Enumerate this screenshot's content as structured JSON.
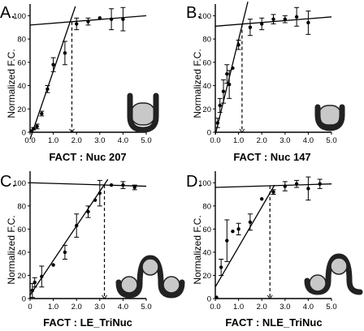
{
  "chart_data": [
    {
      "type": "scatter",
      "panel": "A.",
      "xlabel": "FACT :  Nuc 207",
      "ylabel": "Normalized F.C.",
      "xlim": [
        0,
        5
      ],
      "ylim": [
        0,
        110
      ],
      "x_ticks": [
        "0.0",
        "1.0",
        "2.0",
        "3.0",
        "4.0",
        "5.0"
      ],
      "y_ticks": [
        "0",
        "20",
        "40",
        "60",
        "80",
        "100"
      ],
      "x_tick_values": [
        0,
        1,
        2,
        3,
        4,
        5
      ],
      "y_tick_values": [
        0,
        20,
        40,
        60,
        80,
        100
      ],
      "points": [
        {
          "x": 0.05,
          "y": 1,
          "err": 0
        },
        {
          "x": 0.15,
          "y": 3,
          "err": 1
        },
        {
          "x": 0.3,
          "y": 5,
          "err": 2
        },
        {
          "x": 0.5,
          "y": 16,
          "err": 2
        },
        {
          "x": 0.75,
          "y": 37,
          "err": 3
        },
        {
          "x": 1.0,
          "y": 58,
          "err": 6
        },
        {
          "x": 1.5,
          "y": 68,
          "err": 10
        },
        {
          "x": 2.0,
          "y": 93,
          "err": 5
        },
        {
          "x": 2.5,
          "y": 95,
          "err": 3
        },
        {
          "x": 3.0,
          "y": 98,
          "err": 0
        },
        {
          "x": 3.5,
          "y": 97,
          "err": 9
        },
        {
          "x": 4.0,
          "y": 97,
          "err": 10
        }
      ],
      "fit_lines": [
        {
          "x": [
            0,
            1.95
          ],
          "y": [
            -6,
            108
          ]
        },
        {
          "x": [
            0,
            5
          ],
          "y": [
            92,
            100
          ]
        }
      ],
      "intersection_x": 1.8,
      "icon": "nuc207"
    },
    {
      "type": "scatter",
      "panel": "B.",
      "xlabel": "FACT :  Nuc 147",
      "ylabel": "Normalized F.C.",
      "xlim": [
        0,
        5
      ],
      "ylim": [
        0,
        110
      ],
      "x_ticks": [
        "0.0",
        "1.0",
        "2.0",
        "3.0",
        "4.0",
        "5.0"
      ],
      "y_ticks": [
        "0",
        "20",
        "40",
        "60",
        "80",
        "100"
      ],
      "x_tick_values": [
        0,
        1,
        2,
        3,
        4,
        5
      ],
      "y_tick_values": [
        0,
        20,
        40,
        60,
        80,
        100
      ],
      "points": [
        {
          "x": 0.1,
          "y": 8,
          "err": 4
        },
        {
          "x": 0.2,
          "y": 23,
          "err": 6
        },
        {
          "x": 0.35,
          "y": 35,
          "err": 10
        },
        {
          "x": 0.5,
          "y": 50,
          "err": 8
        },
        {
          "x": 0.6,
          "y": 41,
          "err": 12
        },
        {
          "x": 0.75,
          "y": 55,
          "err": 0
        },
        {
          "x": 1.0,
          "y": 75,
          "err": 4
        },
        {
          "x": 1.5,
          "y": 90,
          "err": 7
        },
        {
          "x": 2.0,
          "y": 93,
          "err": 5
        },
        {
          "x": 2.5,
          "y": 97,
          "err": 4
        },
        {
          "x": 3.0,
          "y": 97,
          "err": 3
        },
        {
          "x": 3.5,
          "y": 99,
          "err": 8
        },
        {
          "x": 4.0,
          "y": 94,
          "err": 10
        }
      ],
      "fit_lines": [
        {
          "x": [
            0,
            1.4
          ],
          "y": [
            -2,
            112
          ]
        },
        {
          "x": [
            0,
            5
          ],
          "y": [
            91,
            99
          ]
        }
      ],
      "intersection_x": 1.15,
      "icon": "nuc147"
    },
    {
      "type": "scatter",
      "panel": "C.",
      "xlabel": "FACT : LE_TriNuc",
      "ylabel": "Normalized F.C.",
      "xlim": [
        0,
        5
      ],
      "ylim": [
        0,
        110
      ],
      "x_ticks": [
        "0",
        "1.0",
        "2.0",
        "3.0",
        "4.0",
        "5.0"
      ],
      "y_ticks": [
        "0",
        "20",
        "40",
        "60",
        "80",
        "100"
      ],
      "x_tick_values": [
        0,
        1,
        2,
        3,
        4,
        5
      ],
      "y_tick_values": [
        0,
        20,
        40,
        60,
        80,
        100
      ],
      "points": [
        {
          "x": 0.1,
          "y": 7,
          "err": 6
        },
        {
          "x": 0.2,
          "y": 14,
          "err": 4
        },
        {
          "x": 0.5,
          "y": 19,
          "err": 9
        },
        {
          "x": 1.0,
          "y": 29,
          "err": 0
        },
        {
          "x": 1.5,
          "y": 40,
          "err": 6
        },
        {
          "x": 2.0,
          "y": 63,
          "err": 10
        },
        {
          "x": 2.5,
          "y": 75,
          "err": 5
        },
        {
          "x": 2.8,
          "y": 85,
          "err": 0
        },
        {
          "x": 3.0,
          "y": 91,
          "err": 11
        },
        {
          "x": 3.5,
          "y": 98,
          "err": 0
        },
        {
          "x": 4.0,
          "y": 98,
          "err": 3
        },
        {
          "x": 4.5,
          "y": 96,
          "err": 2
        }
      ],
      "fit_lines": [
        {
          "x": [
            0,
            3.35
          ],
          "y": [
            3,
            103
          ]
        },
        {
          "x": [
            0,
            5
          ],
          "y": [
            100,
            97
          ]
        }
      ],
      "intersection_x": 3.2,
      "icon": "le-trinuc"
    },
    {
      "type": "scatter",
      "panel": "D.",
      "xlabel": "FACT : NLE_TriNuc",
      "ylabel": "Normalized F.C.",
      "xlim": [
        0,
        5
      ],
      "ylim": [
        0,
        110
      ],
      "x_ticks": [
        "0.0",
        "1.0",
        "2.0",
        "3.0",
        "4.0",
        "5.0"
      ],
      "y_ticks": [
        "0",
        "20",
        "40",
        "60",
        "80",
        "100"
      ],
      "x_tick_values": [
        0,
        1,
        2,
        3,
        4,
        5
      ],
      "y_tick_values": [
        0,
        20,
        40,
        60,
        80,
        100
      ],
      "points": [
        {
          "x": 0.05,
          "y": 1,
          "err": 0
        },
        {
          "x": 0.25,
          "y": 27,
          "err": 7
        },
        {
          "x": 0.5,
          "y": 50,
          "err": 18
        },
        {
          "x": 0.75,
          "y": 58,
          "err": 0
        },
        {
          "x": 1.0,
          "y": 60,
          "err": 5
        },
        {
          "x": 1.5,
          "y": 66,
          "err": 7
        },
        {
          "x": 2.0,
          "y": 86,
          "err": 0
        },
        {
          "x": 2.5,
          "y": 92,
          "err": 2
        },
        {
          "x": 3.0,
          "y": 97,
          "err": 4
        },
        {
          "x": 3.5,
          "y": 99,
          "err": 3
        },
        {
          "x": 4.0,
          "y": 95,
          "err": 10
        },
        {
          "x": 4.5,
          "y": 99,
          "err": 4
        }
      ],
      "fit_lines": [
        {
          "x": [
            0,
            2.55
          ],
          "y": [
            10,
            98
          ]
        },
        {
          "x": [
            0,
            5
          ],
          "y": [
            96,
            99
          ]
        }
      ],
      "intersection_x": 2.35,
      "icon": "nle-trinuc"
    }
  ]
}
